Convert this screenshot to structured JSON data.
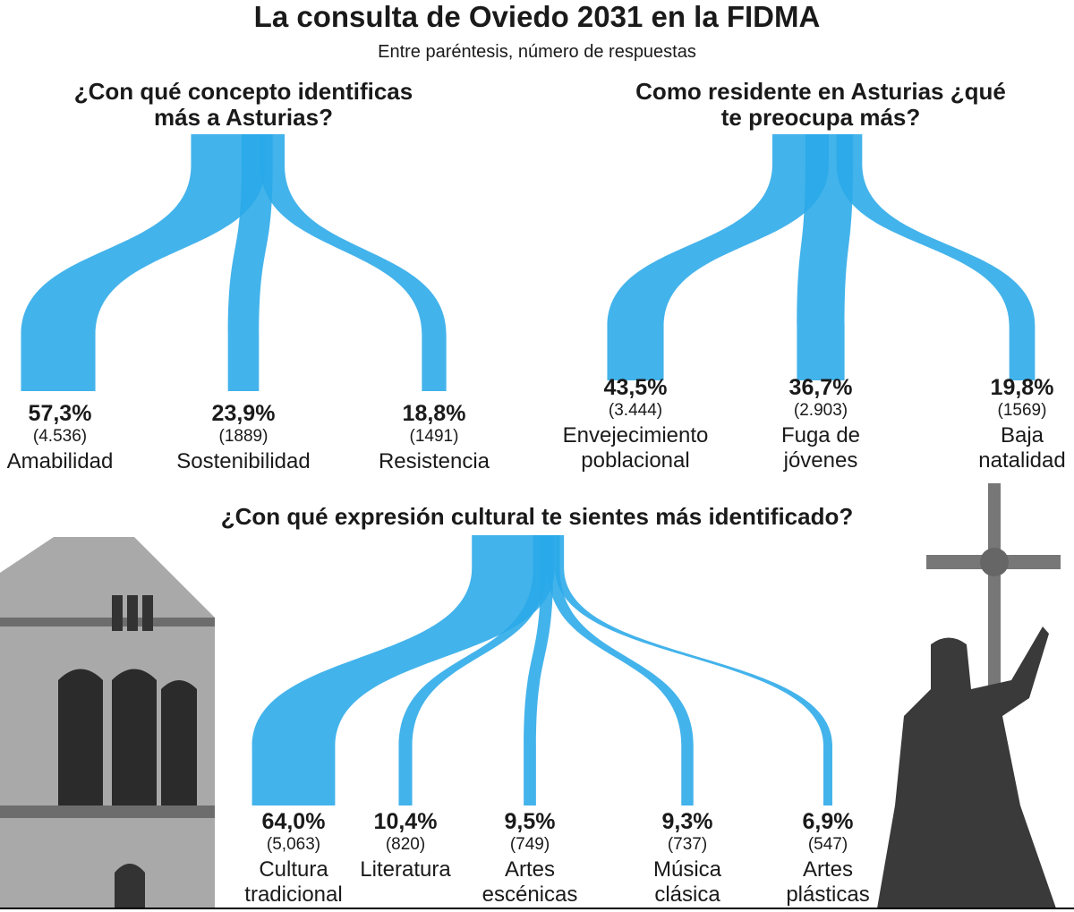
{
  "title": "La consulta de Oviedo 2031 en la FIDMA",
  "subtitle": "Entre paréntesis, número de respuestas",
  "chart_data": [
    {
      "type": "flow",
      "title": "¿Con qué concepto identificas más a Asturias?",
      "color": "#29a8e8",
      "categories": [
        [
          "Amabilidad"
        ],
        [
          "Sostenibilidad"
        ],
        [
          "Resistencia"
        ]
      ],
      "values": [
        57.3,
        23.9,
        18.8
      ],
      "value_labels": [
        "57,3%",
        "23,9%",
        "18,8%"
      ],
      "counts": [
        4536,
        1889,
        1491
      ],
      "count_labels": [
        "(4.536)",
        "(1889)",
        "(1491)"
      ]
    },
    {
      "type": "flow",
      "title": "Como residente en Asturias ¿qué te preocupa más?",
      "color": "#29a8e8",
      "categories": [
        [
          "Envejecimiento",
          "poblacional"
        ],
        [
          "Fuga de",
          "jóvenes"
        ],
        [
          "Baja",
          "natalidad"
        ]
      ],
      "values": [
        43.5,
        36.7,
        19.8
      ],
      "value_labels": [
        "43,5%",
        "36,7%",
        "19,8%"
      ],
      "counts": [
        3444,
        2903,
        1569
      ],
      "count_labels": [
        "(3.444)",
        "(2.903)",
        "(1569)"
      ]
    },
    {
      "type": "flow",
      "title": "¿Con qué expresión cultural te sientes más identificado?",
      "color": "#29a8e8",
      "categories": [
        [
          "Cultura",
          "tradicional"
        ],
        [
          "Literatura"
        ],
        [
          "Artes",
          "escénicas"
        ],
        [
          "Música",
          "clásica"
        ],
        [
          "Artes",
          "plásticas"
        ]
      ],
      "values": [
        64.0,
        10.4,
        9.5,
        9.3,
        6.9
      ],
      "value_labels": [
        "64,0%",
        "10,4%",
        "9,5%",
        "9,3%",
        "6,9%"
      ],
      "counts": [
        5063,
        820,
        749,
        737,
        547
      ],
      "count_labels": [
        "(5,063)",
        "(820)",
        "(749)",
        "(737)",
        "(547)"
      ]
    }
  ]
}
